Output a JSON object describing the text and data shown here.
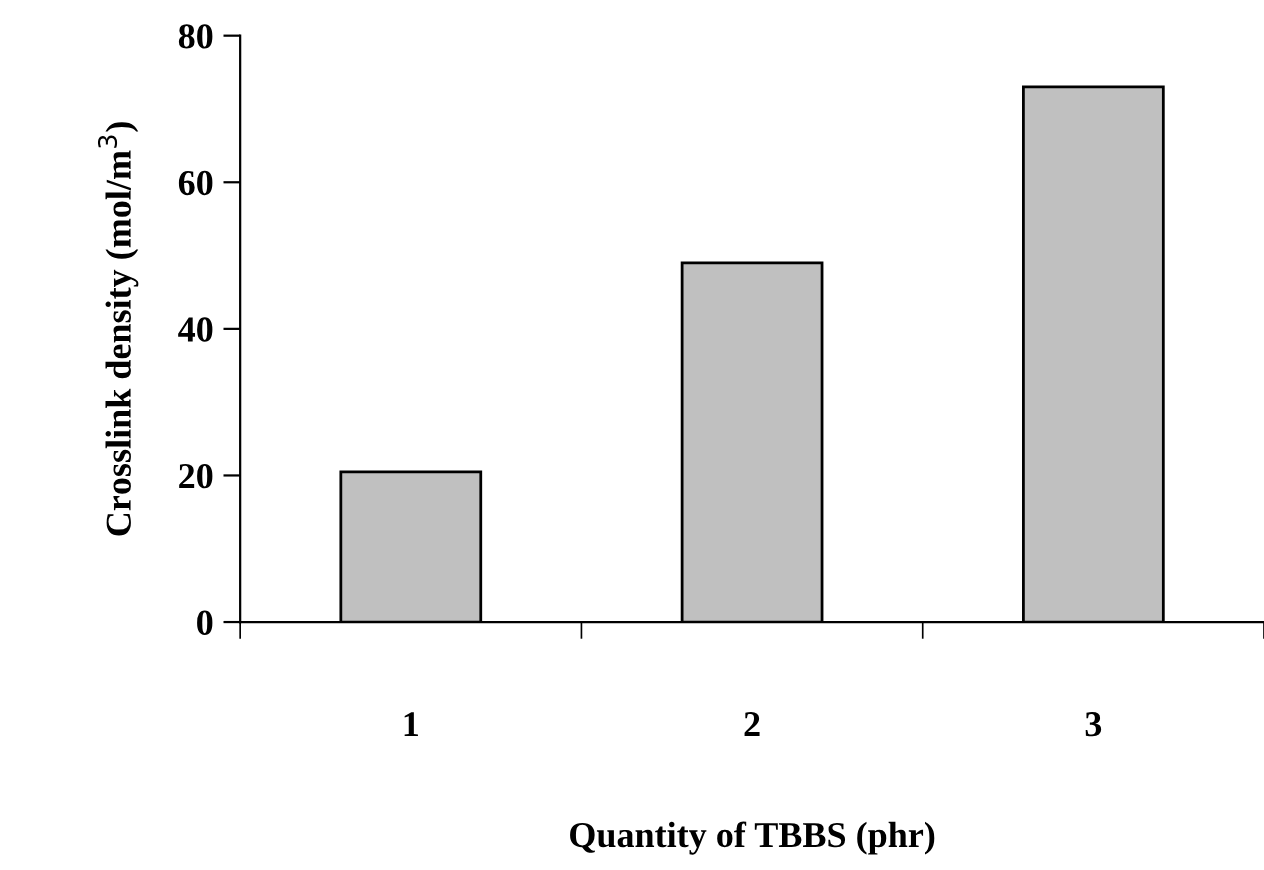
{
  "chart_data": {
    "type": "bar",
    "xlabel": "Quantity of TBBS (phr)",
    "ylabel": "Crosslink density (mol/m$^{3}$)",
    "categories": [
      "1",
      "2",
      "3"
    ],
    "values": [
      20.5,
      49,
      73
    ],
    "color": "#c0c0c0",
    "ylim": [
      0,
      80
    ],
    "yticks": [
      0,
      20,
      40,
      60,
      80
    ],
    "grid": false,
    "legend": false
  }
}
